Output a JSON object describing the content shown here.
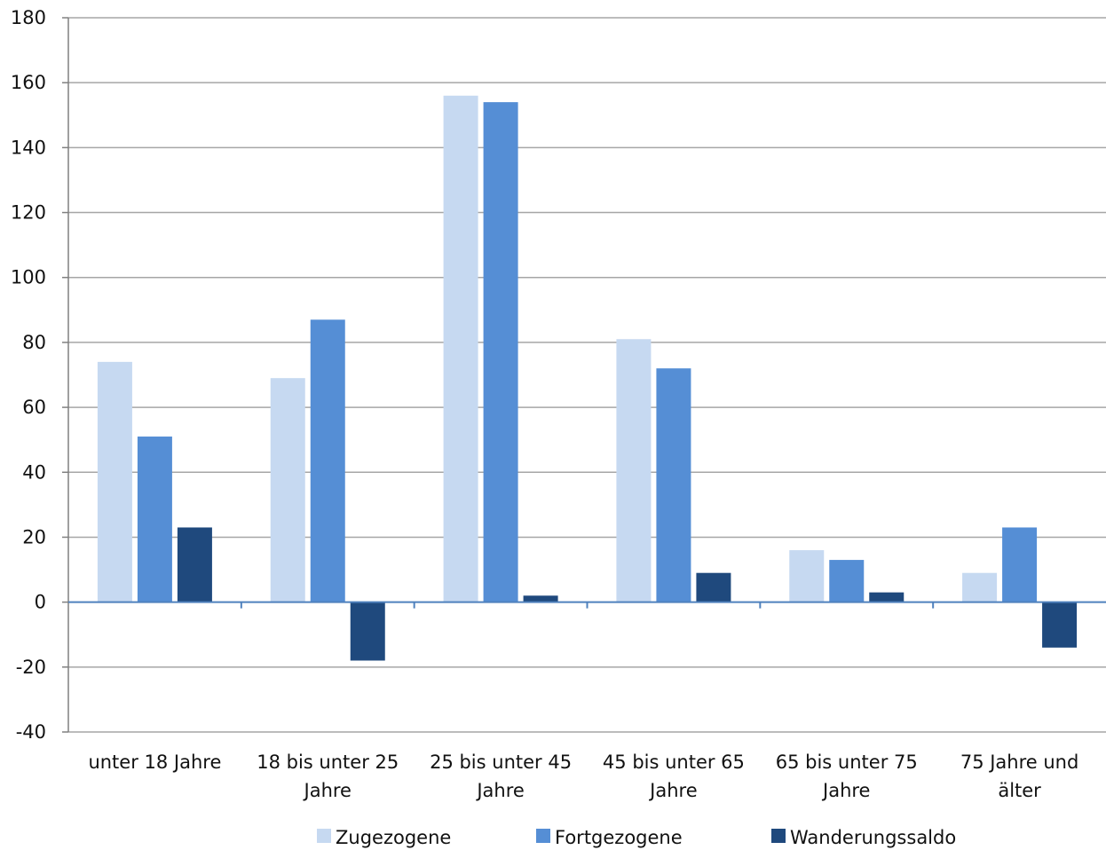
{
  "chart_data": {
    "type": "bar",
    "title": "",
    "xlabel": "",
    "ylabel": "",
    "ylim": [
      -40,
      180
    ],
    "y_ticks": [
      -40,
      -20,
      0,
      20,
      40,
      60,
      80,
      100,
      120,
      140,
      160,
      180
    ],
    "grid": true,
    "legend_position": "bottom",
    "categories": [
      [
        "unter 18 Jahre"
      ],
      [
        "18 bis unter 25",
        "Jahre"
      ],
      [
        "25 bis unter 45",
        "Jahre"
      ],
      [
        "45 bis unter 65",
        "Jahre"
      ],
      [
        "65 bis unter 75",
        "Jahre"
      ],
      [
        "75 Jahre und",
        "älter"
      ]
    ],
    "series": [
      {
        "name": "Zugezogene",
        "color": "#c6d9f1",
        "values": [
          74,
          69,
          156,
          81,
          16,
          9
        ]
      },
      {
        "name": "Fortgezogene",
        "color": "#558ed5",
        "values": [
          51,
          87,
          154,
          72,
          13,
          23
        ]
      },
      {
        "name": "Wanderungssaldo",
        "color": "#1f497d",
        "values": [
          23,
          -18,
          2,
          9,
          3,
          -14
        ]
      }
    ],
    "colors": {
      "grid": "#a6a6a6",
      "zero_axis": "#4f81bd",
      "y_axis": "#808080"
    }
  }
}
